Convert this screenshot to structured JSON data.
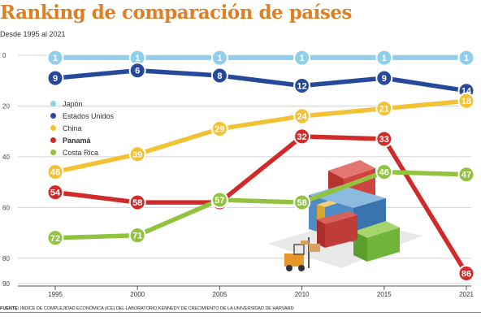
{
  "header": {
    "title": "Ranking de comparación de países",
    "subtitle": "Desde 1995 al 2021"
  },
  "footer": {
    "source_label": "FUENTE:",
    "source_text": "ÍNDICE DE COMPLEJIDAD ECONÓMICA (ICE) DEL LABORATORIO KENNEDY DE CRECIMIENTO DE LA UNIVERSIDAD DE HARVARD"
  },
  "chart_data": {
    "type": "line",
    "title": "Ranking de comparación de países",
    "subtitle": "Desde 1995 al 2021",
    "xlabel": "",
    "ylabel": "",
    "x": [
      "1995",
      "2000",
      "2005",
      "2010",
      "2015",
      "2021"
    ],
    "y_ticks": [
      "0",
      "20",
      "40",
      "60",
      "80",
      "90"
    ],
    "ylim": [
      0,
      90
    ],
    "y_inverted": true,
    "grid": "horizontal",
    "legend_position": "left",
    "series": [
      {
        "name": "Japón",
        "color": "#8fcfee",
        "values": [
          1,
          1,
          1,
          1,
          1,
          1
        ],
        "bold": false
      },
      {
        "name": "Estados Unidos",
        "color": "#27499b",
        "values": [
          9,
          6,
          8,
          12,
          9,
          14
        ],
        "bold": false
      },
      {
        "name": "China",
        "color": "#f2c234",
        "values": [
          46,
          39,
          29,
          24,
          21,
          18
        ],
        "bold": false
      },
      {
        "name": "Panamá",
        "color": "#d02a29",
        "values": [
          54,
          58,
          58,
          32,
          33,
          86
        ],
        "bold": true
      },
      {
        "name": "Costa Rica",
        "color": "#92c33e",
        "values": [
          72,
          71,
          57,
          58,
          46,
          47
        ],
        "bold": false
      }
    ],
    "illustration": "shipping-containers-forklift-icon"
  }
}
